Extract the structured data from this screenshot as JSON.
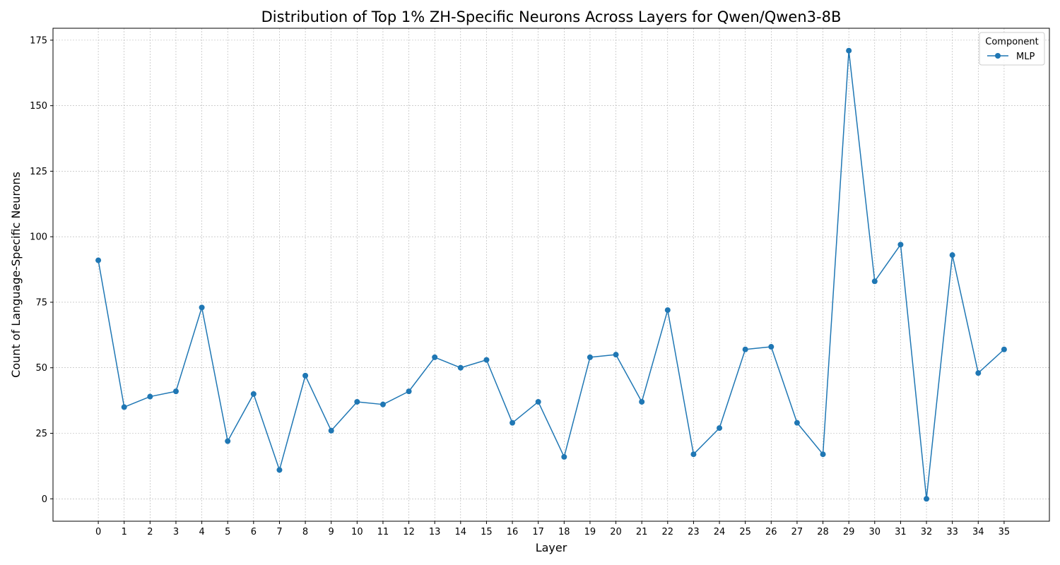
{
  "chart_data": {
    "type": "line",
    "title": "Distribution of Top 1% ZH-Specific Neurons Across Layers for Qwen/Qwen3-8B",
    "xlabel": "Layer",
    "ylabel": "Count of Language-Specific Neurons",
    "x": [
      0,
      1,
      2,
      3,
      4,
      5,
      6,
      7,
      8,
      9,
      10,
      11,
      12,
      13,
      14,
      15,
      16,
      17,
      18,
      19,
      20,
      21,
      22,
      23,
      24,
      25,
      26,
      27,
      28,
      29,
      30,
      31,
      32,
      33,
      34,
      35
    ],
    "series": [
      {
        "name": "MLP",
        "color": "#1f77b4",
        "marker": "circle",
        "values": [
          91,
          35,
          39,
          41,
          73,
          22,
          40,
          11,
          47,
          26,
          37,
          36,
          41,
          54,
          50,
          53,
          29,
          37,
          16,
          54,
          55,
          37,
          72,
          17,
          27,
          57,
          58,
          29,
          17,
          171,
          83,
          97,
          0,
          93,
          48,
          57
        ]
      }
    ],
    "xlim": [
      -1.75,
      36.75
    ],
    "ylim": [
      -8.55,
      179.55
    ],
    "yticks": [
      0,
      25,
      50,
      75,
      100,
      125,
      150,
      175
    ],
    "grid": true,
    "legend": {
      "title": "Component",
      "position": "top-right"
    }
  }
}
